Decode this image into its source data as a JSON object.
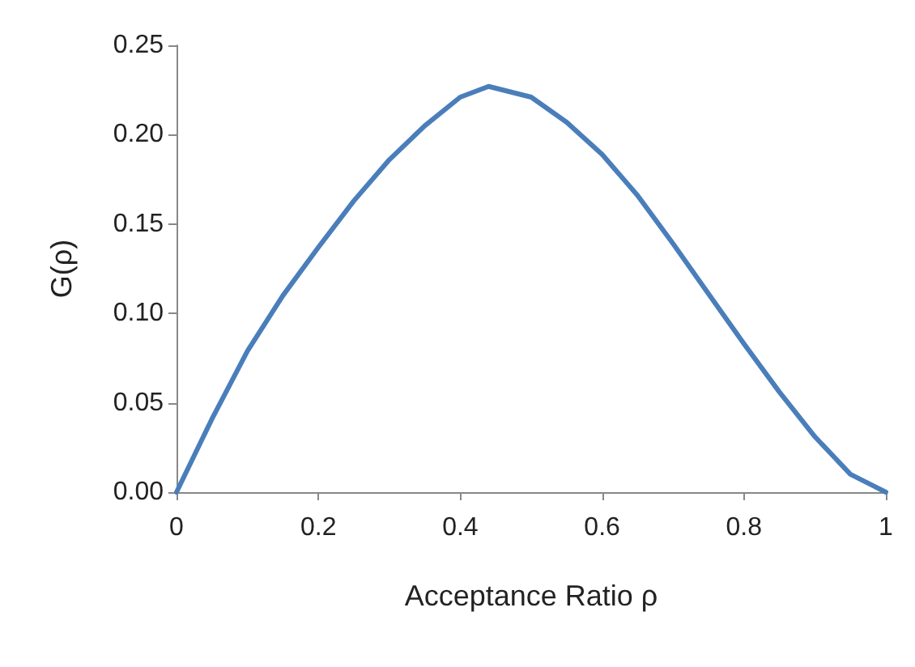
{
  "chart_data": {
    "type": "line",
    "xlabel": "Acceptance Ratio ρ",
    "ylabel": "G(ρ)",
    "x": [
      0,
      0.05,
      0.1,
      0.15,
      0.2,
      0.25,
      0.3,
      0.35,
      0.4,
      0.44,
      0.5,
      0.55,
      0.6,
      0.65,
      0.7,
      0.75,
      0.8,
      0.85,
      0.9,
      0.95,
      0.98,
      1
    ],
    "series": [
      {
        "color": "#4a7ebb",
        "values": [
          0,
          0.041,
          0.079,
          0.11,
          0.137,
          0.163,
          0.186,
          0.205,
          0.221,
          0.227,
          0.221,
          0.207,
          0.189,
          0.166,
          0.139,
          0.111,
          0.083,
          0.056,
          0.031,
          0.01,
          0.004,
          0
        ]
      }
    ],
    "xlim": [
      0,
      1
    ],
    "xticks": [
      {
        "value": 0,
        "label": "0"
      },
      {
        "value": 0.2,
        "label": "0.2"
      },
      {
        "value": 0.4,
        "label": "0.4"
      },
      {
        "value": 0.6,
        "label": "0.6"
      },
      {
        "value": 0.8,
        "label": "0.8"
      },
      {
        "value": 1,
        "label": "1"
      }
    ],
    "ylim": [
      0,
      0.25
    ],
    "yticks": [
      {
        "value": 0,
        "label": "0.00"
      },
      {
        "value": 0.05,
        "label": "0.05"
      },
      {
        "value": 0.1,
        "label": "0.10"
      },
      {
        "value": 0.15,
        "label": "0.15"
      },
      {
        "value": 0.2,
        "label": "0.20"
      },
      {
        "value": 0.25,
        "label": "0.25"
      }
    ],
    "grid": false,
    "marker": "none",
    "line_style": "solid"
  }
}
